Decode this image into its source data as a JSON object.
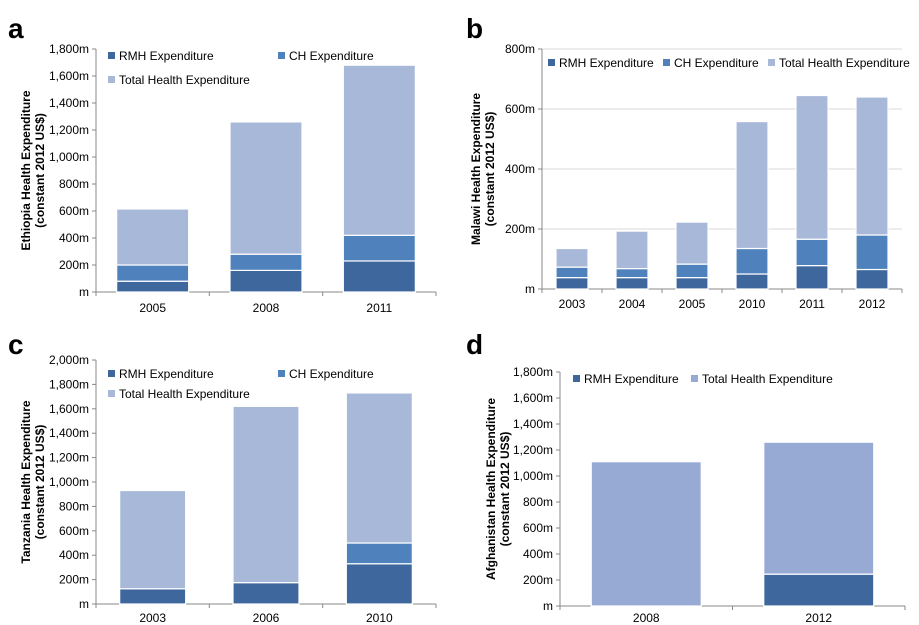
{
  "colors": {
    "rmh": "#3e679d",
    "ch": "#4f81bd",
    "total": "#a8b8d8",
    "afg_total": "#97aad4",
    "axis": "#888888"
  },
  "chart_data": [
    {
      "panel": "a",
      "type": "bar",
      "stacked": true,
      "categories": [
        "2005",
        "2008",
        "2011"
      ],
      "series": [
        {
          "name": "RMH Expenditure",
          "values": [
            80,
            160,
            230
          ]
        },
        {
          "name": "CH Expenditure",
          "values": [
            120,
            120,
            190
          ]
        },
        {
          "name": "Total Health Expenditure",
          "values": [
            415,
            980,
            1260
          ]
        }
      ],
      "totals": [
        615,
        1260,
        1680
      ],
      "ylabel": [
        "Ethiopia Health Expenditure",
        "(constant 2012 US$)"
      ],
      "ylim": [
        0,
        1800
      ],
      "yticks": [
        "m",
        "200m",
        "400m",
        "600m",
        "800m",
        "1,000m",
        "1,200m",
        "1,400m",
        "1,600m",
        "1,800m"
      ],
      "grid": false,
      "legend": "top-left"
    },
    {
      "panel": "b",
      "type": "bar",
      "stacked": true,
      "categories": [
        "2003",
        "2004",
        "2005",
        "2010",
        "2011",
        "2012"
      ],
      "series": [
        {
          "name": "RMH Expenditure",
          "values": [
            38,
            38,
            38,
            50,
            78,
            65
          ]
        },
        {
          "name": "CH Expenditure",
          "values": [
            35,
            30,
            45,
            85,
            88,
            115
          ]
        },
        {
          "name": "Total Health Expenditure",
          "values": [
            62,
            125,
            140,
            423,
            479,
            460
          ]
        }
      ],
      "totals": [
        135,
        193,
        223,
        558,
        645,
        640
      ],
      "ylabel": [
        "Malawi Health Expenditure",
        "(constant 2012 US$)"
      ],
      "ylim": [
        0,
        800
      ],
      "yticks": [
        "m",
        "200m",
        "400m",
        "600m",
        "800m"
      ],
      "grid": true,
      "legend": "top"
    },
    {
      "panel": "c",
      "type": "bar",
      "stacked": true,
      "categories": [
        "2003",
        "2006",
        "2010"
      ],
      "series": [
        {
          "name": "RMH Expenditure",
          "values": [
            125,
            175,
            330
          ]
        },
        {
          "name": "CH Expenditure",
          "values": [
            0,
            0,
            170
          ]
        },
        {
          "name": "Total Health Expenditure",
          "values": [
            805,
            1445,
            1230
          ]
        }
      ],
      "totals": [
        930,
        1620,
        1730
      ],
      "ylabel": [
        "Tanzania Health Expenditure",
        "(constant 2012 US$)"
      ],
      "ylim": [
        0,
        2000
      ],
      "yticks": [
        "m",
        "200m",
        "400m",
        "600m",
        "800m",
        "1,000m",
        "1,200m",
        "1,400m",
        "1,600m",
        "1,800m",
        "2,000m"
      ],
      "grid": false,
      "legend": "top-left"
    },
    {
      "panel": "d",
      "type": "bar",
      "stacked": true,
      "categories": [
        "2008",
        "2012"
      ],
      "series": [
        {
          "name": "RMH Expenditure",
          "values": [
            0,
            245
          ]
        },
        {
          "name": "Total Health Expenditure",
          "values": [
            1110,
            1015
          ]
        }
      ],
      "totals": [
        1110,
        1260
      ],
      "ylabel": [
        "Afghanistan Health Expenditure",
        "(constant 2012 US$)"
      ],
      "ylim": [
        0,
        1800
      ],
      "yticks": [
        "m",
        "200m",
        "400m",
        "600m",
        "800m",
        "1,000m",
        "1,200m",
        "1,400m",
        "1,600m",
        "1,800m"
      ],
      "grid": false,
      "legend": "top-left"
    }
  ]
}
